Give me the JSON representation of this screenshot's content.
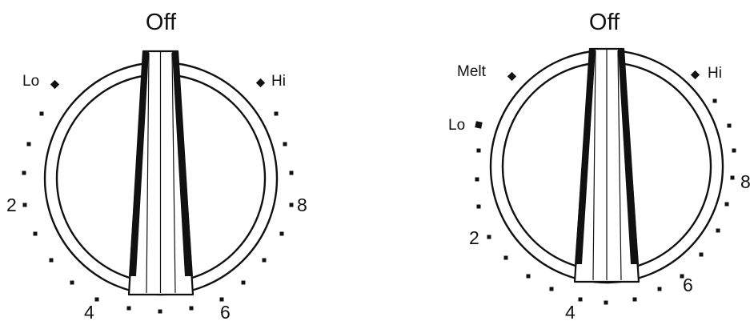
{
  "colors": {
    "ink": "#111111",
    "background": "#ffffff",
    "knob_fill": "#ffffff"
  },
  "knobs": [
    {
      "off_label": "Off",
      "labels": {
        "lo": "Lo",
        "hi": "Hi",
        "n2": "2",
        "n4": "4",
        "n6": "6",
        "n8": "8"
      }
    },
    {
      "off_label": "Off",
      "labels": {
        "melt": "Melt",
        "lo": "Lo",
        "hi": "Hi",
        "n2": "2",
        "n4": "4",
        "n6": "6",
        "n8": "8"
      }
    }
  ],
  "icons": {
    "marker": "diamond-marker-icon",
    "tick": "dot-tick-icon"
  }
}
